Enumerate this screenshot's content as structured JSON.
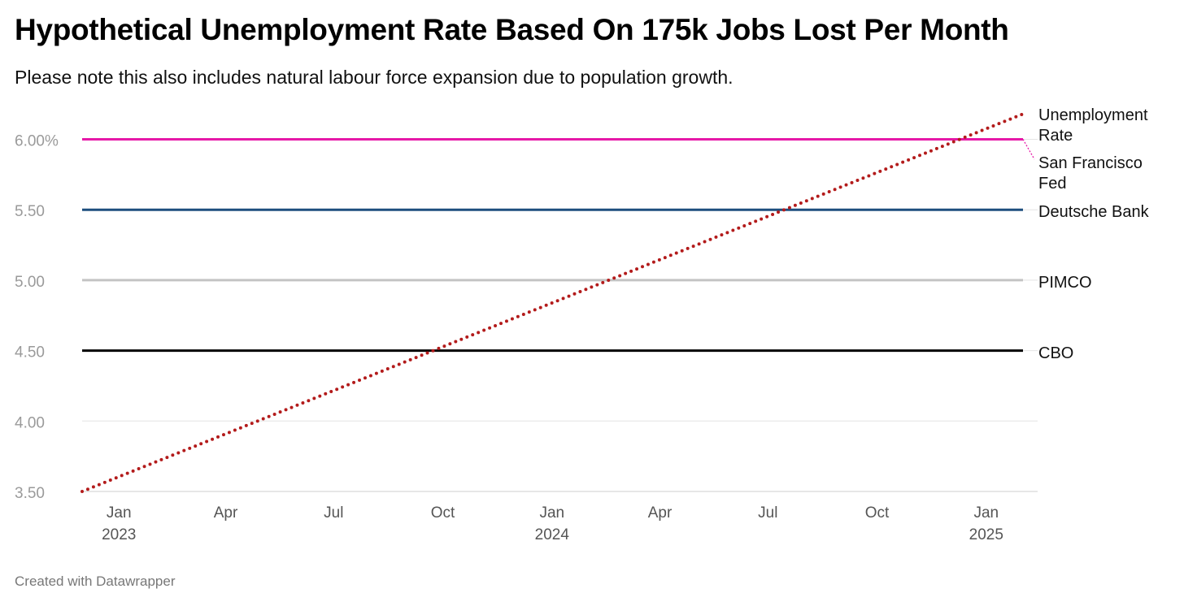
{
  "title": "Hypothetical Unemployment Rate Based On 175k Jobs Lost Per Month",
  "subtitle": "Please note this also includes natural labour force expansion due to population growth.",
  "footer": "Created with Datawrapper",
  "chart_data": {
    "type": "line",
    "x_range": [
      "2022-12-01",
      "2025-02-01"
    ],
    "ylim": [
      3.5,
      6.0
    ],
    "y_ticks": [
      {
        "value": 6.0,
        "label": "6.00%"
      },
      {
        "value": 5.5,
        "label": "5.50"
      },
      {
        "value": 5.0,
        "label": "5.00"
      },
      {
        "value": 4.5,
        "label": "4.50"
      },
      {
        "value": 4.0,
        "label": "4.00"
      },
      {
        "value": 3.5,
        "label": "3.50"
      }
    ],
    "x_ticks": [
      {
        "date": "2023-01-01",
        "label": "Jan",
        "year": "2023"
      },
      {
        "date": "2023-04-01",
        "label": "Apr",
        "year": ""
      },
      {
        "date": "2023-07-01",
        "label": "Jul",
        "year": ""
      },
      {
        "date": "2023-10-01",
        "label": "Oct",
        "year": ""
      },
      {
        "date": "2024-01-01",
        "label": "Jan",
        "year": "2024"
      },
      {
        "date": "2024-04-01",
        "label": "Apr",
        "year": ""
      },
      {
        "date": "2024-07-01",
        "label": "Jul",
        "year": ""
      },
      {
        "date": "2024-10-01",
        "label": "Oct",
        "year": ""
      },
      {
        "date": "2025-01-01",
        "label": "Jan",
        "year": "2025"
      }
    ],
    "grid": true,
    "series": [
      {
        "name": "Unemployment Rate",
        "label_lines": [
          "Unemployment",
          "Rate"
        ],
        "color": "#b31b1b",
        "style": "dotted",
        "points": [
          {
            "x": "2022-12-01",
            "y": 3.5
          },
          {
            "x": "2025-02-01",
            "y": 6.18
          }
        ]
      },
      {
        "name": "San Francisco Fed",
        "label_lines": [
          "San Francisco",
          "Fed"
        ],
        "color": "#e619a8",
        "style": "solid",
        "points": [
          {
            "x": "2022-12-01",
            "y": 6.0
          },
          {
            "x": "2025-02-01",
            "y": 6.0
          }
        ]
      },
      {
        "name": "Deutsche Bank",
        "label_lines": [
          "Deutsche Bank"
        ],
        "color": "#1d4e7e",
        "style": "solid",
        "points": [
          {
            "x": "2022-12-01",
            "y": 5.5
          },
          {
            "x": "2025-02-01",
            "y": 5.5
          }
        ]
      },
      {
        "name": "PIMCO",
        "label_lines": [
          "PIMCO"
        ],
        "color": "#c4c4c4",
        "style": "solid",
        "points": [
          {
            "x": "2022-12-01",
            "y": 5.0
          },
          {
            "x": "2025-02-01",
            "y": 5.0
          }
        ]
      },
      {
        "name": "CBO",
        "label_lines": [
          "CBO"
        ],
        "color": "#000000",
        "style": "solid",
        "points": [
          {
            "x": "2022-12-01",
            "y": 4.5
          },
          {
            "x": "2025-02-01",
            "y": 4.5
          }
        ]
      }
    ]
  }
}
